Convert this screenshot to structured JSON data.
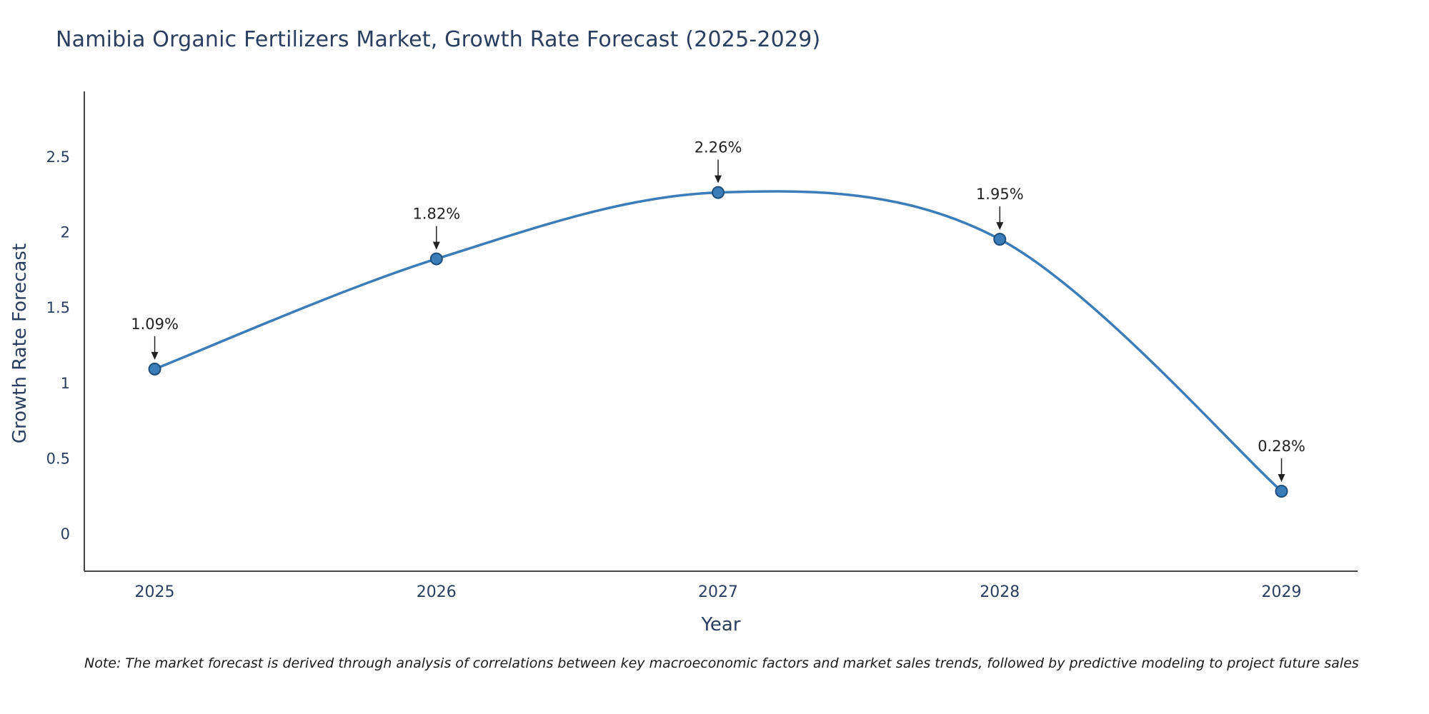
{
  "note": "Note: The market forecast is derived through analysis of correlations between key macroeconomic factors and market sales trends, followed by predictive modeling to project future sales",
  "chart_data": {
    "type": "line",
    "title": "Namibia Organic Fertilizers Market, Growth Rate Forecast (2025-2029)",
    "xlabel": "Year",
    "ylabel": "Growth Rate Forecast",
    "x": [
      2025,
      2026,
      2027,
      2028,
      2029
    ],
    "values": [
      1.09,
      1.82,
      2.26,
      1.95,
      0.28
    ],
    "point_labels": [
      "1.09%",
      "1.82%",
      "2.26%",
      "1.95%",
      "0.28%"
    ],
    "yticks": [
      0,
      0.5,
      1,
      1.5,
      2,
      2.5
    ],
    "ylim": [
      -0.25,
      2.93
    ],
    "xlim": [
      2024.75,
      2029.27
    ],
    "grid": false,
    "legend": "none",
    "smooth": true,
    "line_color": "#3a7db8",
    "marker_color": "#3a7db8",
    "marker_edge_color": "#1f4e79",
    "axis_color": "#444444",
    "annotation_color": "#222222",
    "tick_color": "#2a3f5f"
  }
}
